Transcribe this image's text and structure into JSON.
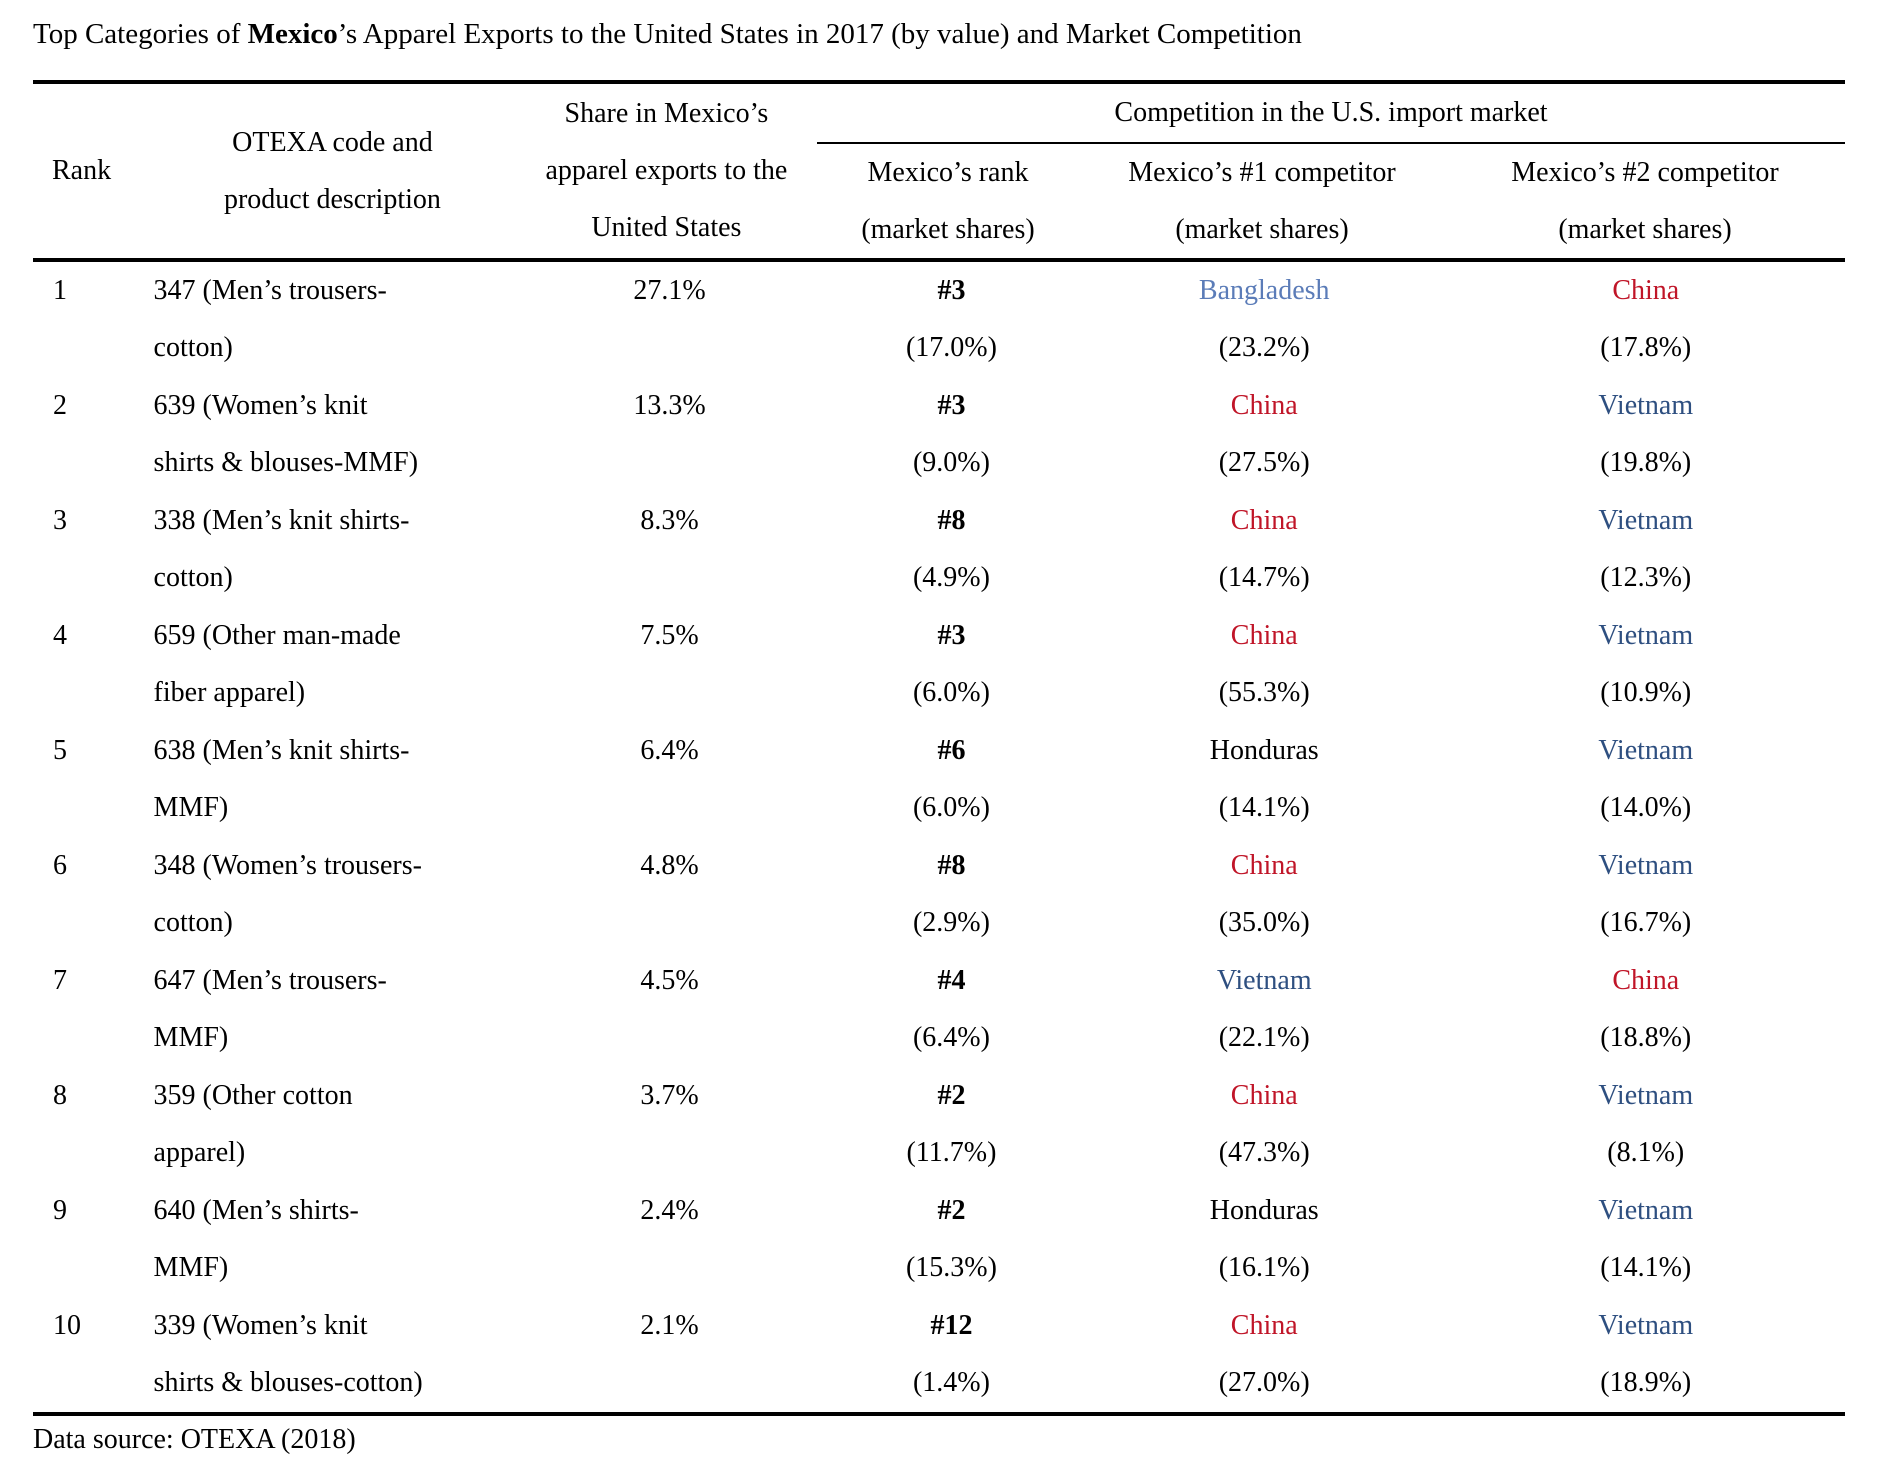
{
  "page": {
    "title_prefix": "Top Categories of ",
    "title_bold": "Mexico",
    "title_suffix": "’s Apparel Exports to the United States in 2017 (by value) and Market Competition",
    "footer": "Data source: OTEXA (2018)"
  },
  "colors": {
    "china": "#c01528",
    "vietnam": "#2e4f80",
    "bangladesh": "#5b7cb8",
    "honduras": "#000000"
  },
  "header": {
    "rank": "Rank",
    "code_line1": "OTEXA code and",
    "code_line2": "product description",
    "share_line1": "Share in Mexico’s",
    "share_line2": "apparel exports to the",
    "share_line3": "United States",
    "competition_group": "Competition in the U.S. import market",
    "mx_rank_line1": "Mexico’s rank",
    "market_shares": "(market shares)",
    "comp1_line1": "Mexico’s #1 competitor",
    "comp2_line1": "Mexico’s #2 competitor"
  },
  "rows": [
    {
      "rank": "1",
      "desc1": "347 (Men’s trousers-",
      "desc2": "cotton)",
      "share": "27.1%",
      "mx_rank": "#3",
      "mx_share": "(17.0%)",
      "c1": {
        "name": "Bangladesh",
        "share": "(23.2%)",
        "color": "bangladesh"
      },
      "c2": {
        "name": "China",
        "share": "(17.8%)",
        "color": "china"
      }
    },
    {
      "rank": "2",
      "desc1": "639 (Women’s knit",
      "desc2": "shirts & blouses-MMF)",
      "share": "13.3%",
      "mx_rank": "#3",
      "mx_share": "(9.0%)",
      "c1": {
        "name": "China",
        "share": "(27.5%)",
        "color": "china"
      },
      "c2": {
        "name": "Vietnam",
        "share": "(19.8%)",
        "color": "vietnam"
      }
    },
    {
      "rank": "3",
      "desc1": "338 (Men’s knit shirts-",
      "desc2": "cotton)",
      "share": "8.3%",
      "mx_rank": "#8",
      "mx_share": "(4.9%)",
      "c1": {
        "name": "China",
        "share": "(14.7%)",
        "color": "china"
      },
      "c2": {
        "name": "Vietnam",
        "share": "(12.3%)",
        "color": "vietnam"
      }
    },
    {
      "rank": "4",
      "desc1": "659 (Other man-made",
      "desc2": "fiber apparel)",
      "share": "7.5%",
      "mx_rank": "#3",
      "mx_share": "(6.0%)",
      "c1": {
        "name": "China",
        "share": "(55.3%)",
        "color": "china"
      },
      "c2": {
        "name": "Vietnam",
        "share": "(10.9%)",
        "color": "vietnam"
      }
    },
    {
      "rank": "5",
      "desc1": "638 (Men’s knit shirts-",
      "desc2": "MMF)",
      "share": "6.4%",
      "mx_rank": "#6",
      "mx_share": "(6.0%)",
      "c1": {
        "name": "Honduras",
        "share": "(14.1%)",
        "color": "honduras"
      },
      "c2": {
        "name": "Vietnam",
        "share": "(14.0%)",
        "color": "vietnam"
      }
    },
    {
      "rank": "6",
      "desc1": "348 (Women’s trousers-",
      "desc2": "cotton)",
      "share": "4.8%",
      "mx_rank": "#8",
      "mx_share": "(2.9%)",
      "c1": {
        "name": "China",
        "share": "(35.0%)",
        "color": "china"
      },
      "c2": {
        "name": "Vietnam",
        "share": "(16.7%)",
        "color": "vietnam"
      }
    },
    {
      "rank": "7",
      "desc1": "647 (Men’s trousers-",
      "desc2": "MMF)",
      "share": "4.5%",
      "mx_rank": "#4",
      "mx_share": "(6.4%)",
      "c1": {
        "name": "Vietnam",
        "share": "(22.1%)",
        "color": "vietnam"
      },
      "c2": {
        "name": "China",
        "share": "(18.8%)",
        "color": "china"
      }
    },
    {
      "rank": "8",
      "desc1": "359 (Other cotton",
      "desc2": "apparel)",
      "share": "3.7%",
      "mx_rank": "#2",
      "mx_share": "(11.7%)",
      "c1": {
        "name": "China",
        "share": "(47.3%)",
        "color": "china"
      },
      "c2": {
        "name": "Vietnam",
        "share": "(8.1%)",
        "color": "vietnam"
      }
    },
    {
      "rank": "9",
      "desc1": "640 (Men’s shirts-",
      "desc2": "MMF)",
      "share": "2.4%",
      "mx_rank": "#2",
      "mx_share": "(15.3%)",
      "c1": {
        "name": "Honduras",
        "share": "(16.1%)",
        "color": "honduras"
      },
      "c2": {
        "name": "Vietnam",
        "share": "(14.1%)",
        "color": "vietnam"
      }
    },
    {
      "rank": "10",
      "desc1": "339 (Women’s knit",
      "desc2": "shirts & blouses-cotton)",
      "share": "2.1%",
      "mx_rank": "#12",
      "mx_share": "(1.4%)",
      "c1": {
        "name": "China",
        "share": "(27.0%)",
        "color": "china"
      },
      "c2": {
        "name": "Vietnam",
        "share": "(18.9%)",
        "color": "vietnam"
      }
    }
  ]
}
